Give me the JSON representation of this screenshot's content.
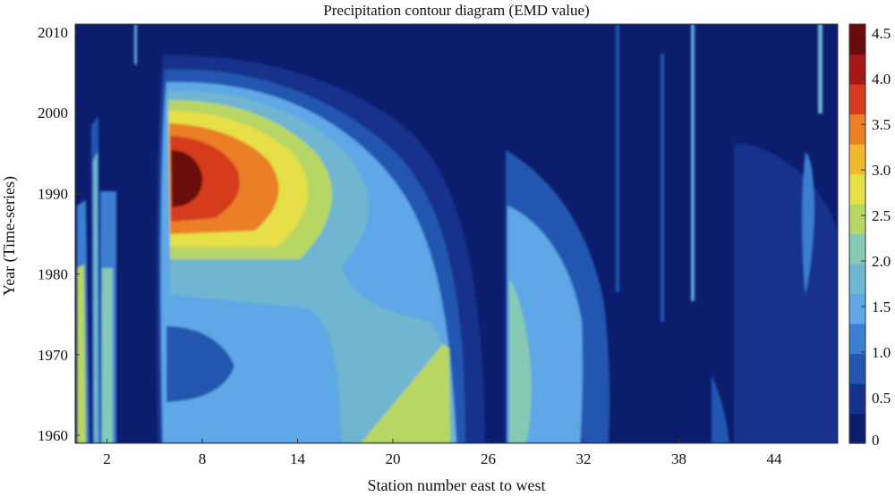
{
  "chart_data": {
    "type": "heatmap",
    "title": "Precipitation contour diagram (EMD value)",
    "xlabel": "Station number east to west",
    "ylabel": "Year (Time-series)",
    "xlim": [
      0,
      48
    ],
    "ylim": [
      1959,
      2011
    ],
    "x_ticks": [
      "2",
      "8",
      "14",
      "20",
      "26",
      "32",
      "38",
      "44"
    ],
    "y_ticks": [
      "1960",
      "1970",
      "1980",
      "1990",
      "2000",
      "2010"
    ],
    "colorbar": {
      "ticks": [
        "0",
        "0.5",
        "1.0",
        "1.5",
        "2.0",
        "2.5",
        "3.0",
        "3.5",
        "4.0",
        "4.5"
      ],
      "range": [
        0,
        4.6
      ]
    },
    "features": [
      {
        "name": "main-peak",
        "x_center": 8,
        "y_center": 1991,
        "peak_value": 4.6
      },
      {
        "name": "southern-ridge",
        "x_center": 22,
        "y_center": 1965,
        "value": 2.5
      },
      {
        "name": "stations-27-32-band",
        "x_center": 29,
        "y_center": 1976,
        "value": 1.8
      }
    ]
  },
  "colors": {
    "low": "#0c1d6e",
    "peak": "#6b0a0a",
    "levels": [
      "#0c1d6e",
      "#16338c",
      "#2456b0",
      "#3b7ed2",
      "#5fa7e6",
      "#6fb6d0",
      "#86c9b4",
      "#b8d664",
      "#e6df47",
      "#f0b92e",
      "#ea7f25",
      "#d63a1f",
      "#a81616",
      "#6b0a0a"
    ]
  }
}
